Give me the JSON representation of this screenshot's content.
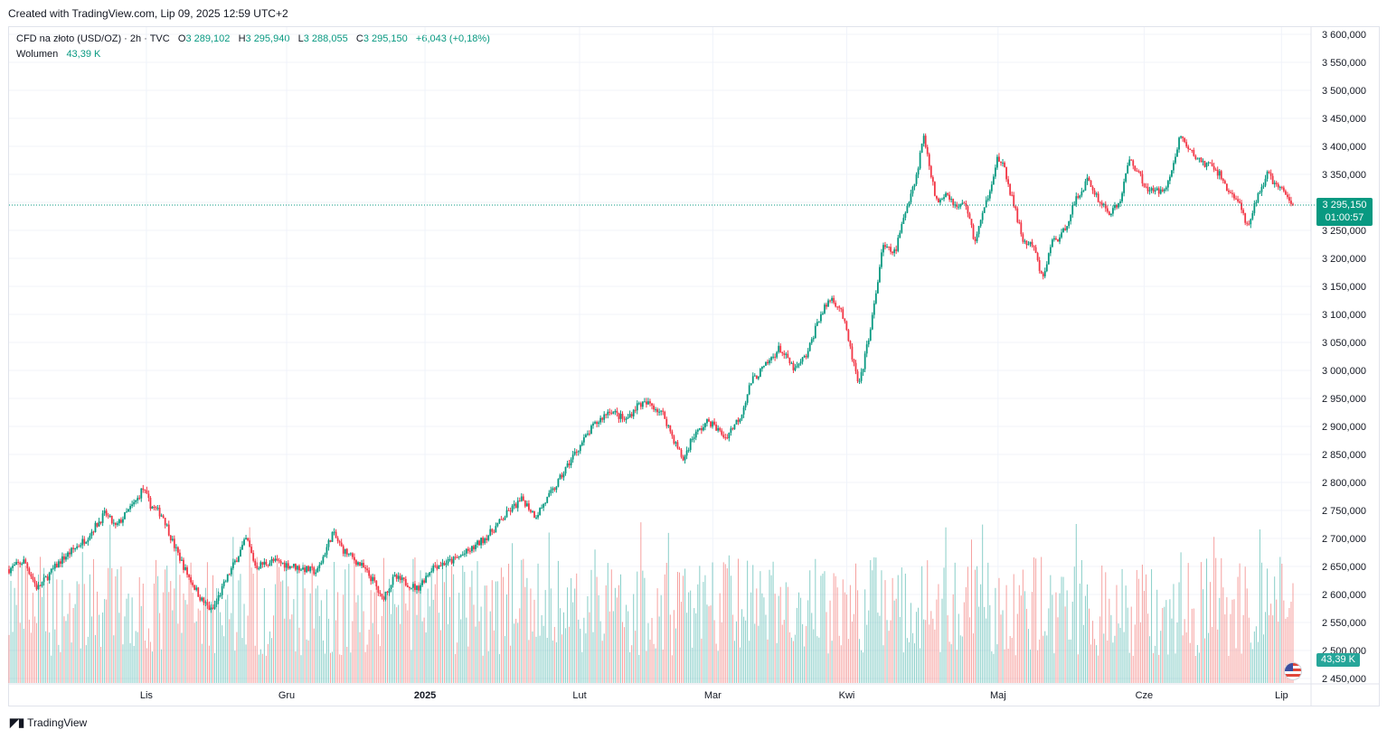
{
  "header": {
    "created_text": "Created with TradingView.com, Lip 09, 2025 12:59 UTC+2"
  },
  "legend": {
    "symbol": "CFD na złoto (USD/OZ) · 2h · TVC",
    "o_label": "O",
    "o_value": "3 289,102",
    "h_label": "H",
    "h_value": "3 295,940",
    "l_label": "L",
    "l_value": "3 288,055",
    "c_label": "C",
    "c_value": "3 295,150",
    "change": "+6,043 (+0,18%)",
    "volume_label": "Wolumen",
    "volume_value": "43,39 K"
  },
  "price_tag": {
    "price": "3 295,150",
    "countdown": "01:00:57"
  },
  "volume_tag": "43,39 K",
  "footer": {
    "brand": "TradingView"
  },
  "colors": {
    "up": "#089981",
    "down": "#f23645",
    "vol_up": "#26a69a",
    "vol_down": "#ef5350",
    "grid": "#f0f3fa"
  },
  "chart_data": {
    "type": "candlestick",
    "title": "CFD na złoto (USD/OZ) · 2h · TVC",
    "y_ticks": [
      "3 600,000",
      "3 550,000",
      "3 500,000",
      "3 450,000",
      "3 400,000",
      "3 350,000",
      "3 300,000",
      "3 250,000",
      "3 200,000",
      "3 150,000",
      "3 100,000",
      "3 050,000",
      "3 000,000",
      "2 950,000",
      "2 900,000",
      "2 850,000",
      "2 800,000",
      "2 750,000",
      "2 700,000",
      "2 650,000",
      "2 600,000",
      "2 550,000",
      "2 500,000",
      "2 450,000"
    ],
    "y_tick_values": [
      3600,
      3550,
      3500,
      3450,
      3400,
      3350,
      3300,
      3250,
      3200,
      3150,
      3100,
      3050,
      3000,
      2950,
      2900,
      2850,
      2800,
      2750,
      2700,
      2650,
      2600,
      2550,
      2500,
      2450
    ],
    "ylim": [
      2450,
      3600
    ],
    "x_labels": [
      "Lis",
      "Gru",
      "2025",
      "Lut",
      "Mar",
      "Kwi",
      "Maj",
      "Cze",
      "Lip"
    ],
    "x_label_positions": [
      0.1055,
      0.2132,
      0.3195,
      0.4382,
      0.5405,
      0.6434,
      0.7596,
      0.8718,
      0.9773
    ],
    "last_price": 3295.15,
    "price_path": [
      [
        0.0,
        2645
      ],
      [
        0.012,
        2660
      ],
      [
        0.022,
        2610
      ],
      [
        0.04,
        2660
      ],
      [
        0.06,
        2700
      ],
      [
        0.075,
        2745
      ],
      [
        0.083,
        2720
      ],
      [
        0.1,
        2770
      ],
      [
        0.104,
        2790
      ],
      [
        0.11,
        2760
      ],
      [
        0.12,
        2740
      ],
      [
        0.128,
        2690
      ],
      [
        0.138,
        2640
      ],
      [
        0.15,
        2590
      ],
      [
        0.158,
        2570
      ],
      [
        0.172,
        2640
      ],
      [
        0.185,
        2700
      ],
      [
        0.192,
        2650
      ],
      [
        0.205,
        2660
      ],
      [
        0.222,
        2650
      ],
      [
        0.24,
        2640
      ],
      [
        0.252,
        2710
      ],
      [
        0.26,
        2680
      ],
      [
        0.275,
        2650
      ],
      [
        0.285,
        2620
      ],
      [
        0.29,
        2590
      ],
      [
        0.3,
        2630
      ],
      [
        0.31,
        2620
      ],
      [
        0.318,
        2610
      ],
      [
        0.33,
        2650
      ],
      [
        0.345,
        2660
      ],
      [
        0.36,
        2680
      ],
      [
        0.375,
        2710
      ],
      [
        0.39,
        2750
      ],
      [
        0.4,
        2770
      ],
      [
        0.41,
        2740
      ],
      [
        0.425,
        2790
      ],
      [
        0.44,
        2850
      ],
      [
        0.455,
        2900
      ],
      [
        0.468,
        2930
      ],
      [
        0.48,
        2910
      ],
      [
        0.49,
        2940
      ],
      [
        0.5,
        2940
      ],
      [
        0.51,
        2920
      ],
      [
        0.517,
        2880
      ],
      [
        0.525,
        2840
      ],
      [
        0.532,
        2880
      ],
      [
        0.545,
        2910
      ],
      [
        0.558,
        2880
      ],
      [
        0.57,
        2920
      ],
      [
        0.578,
        2980
      ],
      [
        0.59,
        3010
      ],
      [
        0.6,
        3040
      ],
      [
        0.612,
        3000
      ],
      [
        0.622,
        3030
      ],
      [
        0.63,
        3090
      ],
      [
        0.64,
        3130
      ],
      [
        0.648,
        3110
      ],
      [
        0.655,
        3040
      ],
      [
        0.662,
        2970
      ],
      [
        0.668,
        3040
      ],
      [
        0.675,
        3130
      ],
      [
        0.68,
        3220
      ],
      [
        0.69,
        3210
      ],
      [
        0.7,
        3300
      ],
      [
        0.707,
        3350
      ],
      [
        0.712,
        3420
      ],
      [
        0.716,
        3380
      ],
      [
        0.722,
        3300
      ],
      [
        0.73,
        3320
      ],
      [
        0.738,
        3290
      ],
      [
        0.745,
        3300
      ],
      [
        0.752,
        3230
      ],
      [
        0.76,
        3290
      ],
      [
        0.77,
        3380
      ],
      [
        0.775,
        3360
      ],
      [
        0.782,
        3300
      ],
      [
        0.79,
        3230
      ],
      [
        0.798,
        3220
      ],
      [
        0.805,
        3160
      ],
      [
        0.812,
        3230
      ],
      [
        0.82,
        3240
      ],
      [
        0.83,
        3300
      ],
      [
        0.84,
        3340
      ],
      [
        0.85,
        3300
      ],
      [
        0.858,
        3280
      ],
      [
        0.865,
        3300
      ],
      [
        0.873,
        3380
      ],
      [
        0.88,
        3350
      ],
      [
        0.888,
        3320
      ],
      [
        0.896,
        3320
      ],
      [
        0.904,
        3340
      ],
      [
        0.912,
        3420
      ],
      [
        0.92,
        3390
      ],
      [
        0.93,
        3370
      ],
      [
        0.94,
        3360
      ],
      [
        0.95,
        3320
      ],
      [
        0.958,
        3300
      ],
      [
        0.965,
        3250
      ],
      [
        0.972,
        3310
      ],
      [
        0.98,
        3350
      ],
      [
        0.988,
        3330
      ],
      [
        0.995,
        3310
      ],
      [
        1.0,
        3295
      ]
    ]
  }
}
